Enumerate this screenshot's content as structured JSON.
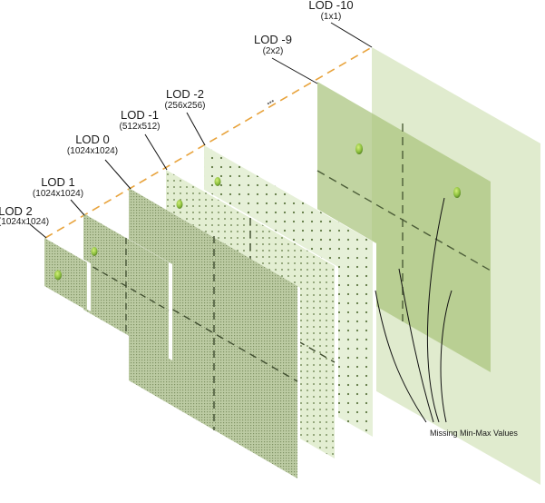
{
  "levels": [
    {
      "title": "LOD 2",
      "size": "(1024x1024)"
    },
    {
      "title": "LOD 1",
      "size": "(1024x1024)"
    },
    {
      "title": "LOD 0",
      "size": "(1024x1024)"
    },
    {
      "title": "LOD -1",
      "size": "(512x512)"
    },
    {
      "title": "LOD -2",
      "size": "(256x256)"
    },
    {
      "title": "LOD -9",
      "size": "(2x2)"
    },
    {
      "title": "LOD -10",
      "size": "(1x1)"
    }
  ],
  "ellipsis": "•••",
  "annotation": "Missing Min-Max Values",
  "colors": {
    "guide_line": "#e8a33c",
    "plane_light": "#dbe8c6",
    "plane_mid": "#bfd39e",
    "plane_dense": "#a9bb8c",
    "dot": "#6a7f4a",
    "marker": "#8fc23f"
  }
}
